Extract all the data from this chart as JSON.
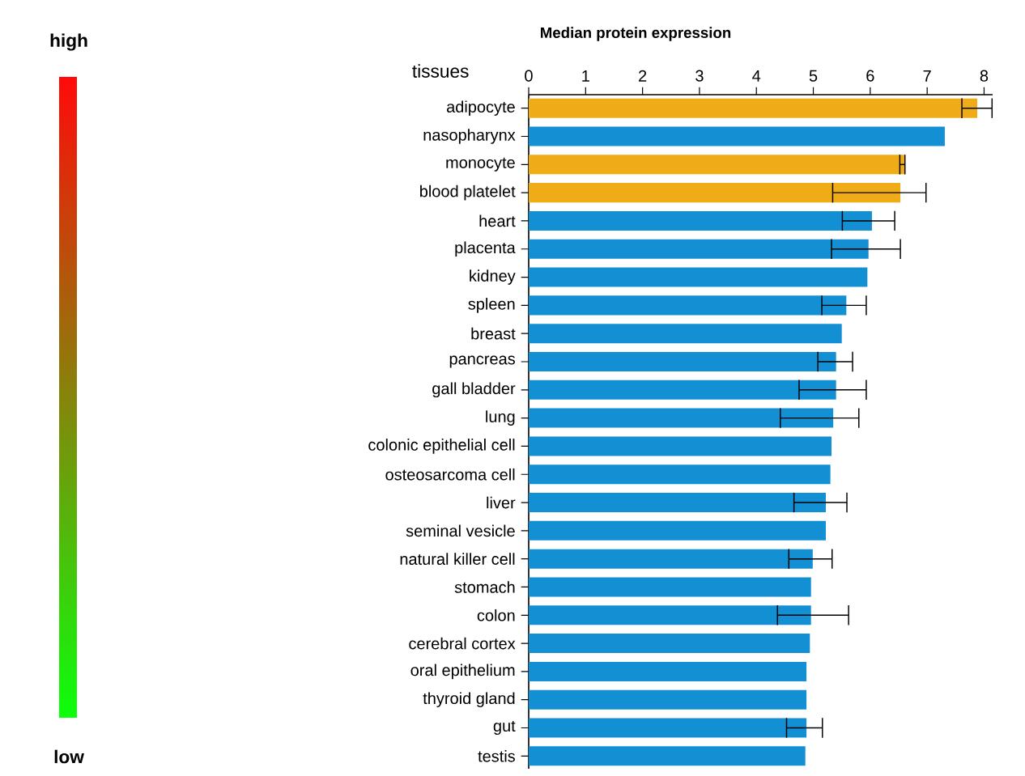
{
  "chart_data": {
    "type": "bar",
    "orientation": "horizontal",
    "title": "Median protein expression",
    "ylabel": "tissues",
    "categories": [
      "adipocyte",
      "nasopharynx",
      "monocyte",
      "blood platelet",
      "heart",
      "placenta",
      "kidney",
      "spleen",
      "breast",
      "pancreas",
      "gall bladder",
      "lung",
      "colonic epithelial cell",
      "osteosarcoma cell",
      "liver",
      "seminal vesicle",
      "natural killer cell",
      "stomach",
      "colon",
      "cerebral cortex",
      "oral epithelium",
      "thyroid gland",
      "gut",
      "testis"
    ],
    "values": [
      7.88,
      7.31,
      6.61,
      6.53,
      6.03,
      5.97,
      5.95,
      5.58,
      5.5,
      5.4,
      5.4,
      5.35,
      5.32,
      5.3,
      5.22,
      5.22,
      4.99,
      4.96,
      4.96,
      4.94,
      4.88,
      4.88,
      4.88,
      4.86
    ],
    "colors": [
      "#f0ac17",
      "#138fd4",
      "#f0ac17",
      "#f0ac17",
      "#138fd4",
      "#138fd4",
      "#138fd4",
      "#138fd4",
      "#138fd4",
      "#138fd4",
      "#138fd4",
      "#138fd4",
      "#138fd4",
      "#138fd4",
      "#138fd4",
      "#138fd4",
      "#138fd4",
      "#138fd4",
      "#138fd4",
      "#138fd4",
      "#138fd4",
      "#138fd4",
      "#138fd4",
      "#138fd4"
    ],
    "errors": [
      [
        7.61,
        8.14
      ],
      null,
      [
        6.52,
        6.61
      ],
      [
        5.34,
        6.98
      ],
      [
        5.51,
        6.43
      ],
      [
        5.32,
        6.53
      ],
      null,
      [
        5.15,
        5.93
      ],
      null,
      [
        5.08,
        5.69
      ],
      [
        4.75,
        5.93
      ],
      [
        4.42,
        5.8
      ],
      null,
      null,
      [
        4.66,
        5.59
      ],
      null,
      [
        4.57,
        5.33
      ],
      null,
      [
        4.37,
        5.62
      ],
      null,
      null,
      null,
      [
        4.53,
        5.16
      ],
      null
    ],
    "xlim": [
      0,
      8.15
    ],
    "xticks": [
      0,
      1,
      2,
      3,
      4,
      5,
      6,
      7,
      8
    ],
    "annotations": [
      "high",
      "low"
    ]
  }
}
